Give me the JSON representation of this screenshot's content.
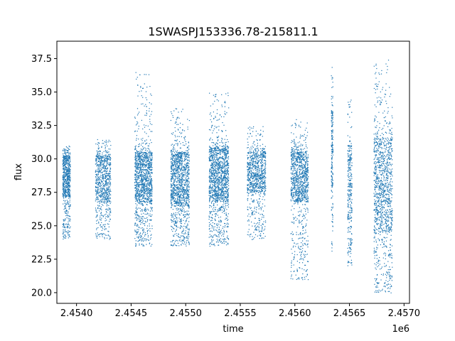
{
  "chart_data": {
    "type": "scatter",
    "title": "1SWASPJ153336.78-215811.1",
    "xlabel": "time",
    "ylabel": "flux",
    "x_offset_label": "1e6",
    "xlim": [
      2453820,
      2457050
    ],
    "ylim": [
      19.2,
      38.8
    ],
    "x_ticks": [
      2.454,
      2.4545,
      2.455,
      2.4555,
      2.456,
      2.4565,
      2.457
    ],
    "x_tick_labels": [
      "2.4540",
      "2.4545",
      "2.4550",
      "2.4555",
      "2.4560",
      "2.4565",
      "2.4570"
    ],
    "y_ticks": [
      20.0,
      22.5,
      25.0,
      27.5,
      30.0,
      32.5,
      35.0,
      37.5
    ],
    "y_tick_labels": [
      "20.0",
      "22.5",
      "25.0",
      "27.5",
      "30.0",
      "32.5",
      "35.0",
      "37.5"
    ],
    "grid": false,
    "marker_color": "#1f77b4",
    "seasons": [
      {
        "x_start": 2453870,
        "x_end": 2453940,
        "core_low": 27.2,
        "core_high": 30.2,
        "low_min": 24.0,
        "high_max": 31.0,
        "n": 700
      },
      {
        "x_start": 2454170,
        "x_end": 2454310,
        "core_low": 26.8,
        "core_high": 30.2,
        "low_min": 24.0,
        "high_max": 31.5,
        "n": 800
      },
      {
        "x_start": 2454530,
        "x_end": 2454690,
        "core_low": 26.8,
        "core_high": 30.5,
        "low_min": 23.5,
        "high_max": 36.5,
        "n": 1300
      },
      {
        "x_start": 2454860,
        "x_end": 2455030,
        "core_low": 26.5,
        "core_high": 30.5,
        "low_min": 23.5,
        "high_max": 34.0,
        "n": 1300
      },
      {
        "x_start": 2455210,
        "x_end": 2455390,
        "core_low": 26.8,
        "core_high": 30.8,
        "low_min": 23.5,
        "high_max": 35.0,
        "n": 1400
      },
      {
        "x_start": 2455560,
        "x_end": 2455730,
        "core_low": 27.5,
        "core_high": 30.5,
        "low_min": 24.0,
        "high_max": 32.5,
        "n": 900
      },
      {
        "x_start": 2455960,
        "x_end": 2456120,
        "core_low": 26.8,
        "core_high": 30.5,
        "low_min": 21.0,
        "high_max": 33.0,
        "n": 1100
      },
      {
        "x_start": 2456330,
        "x_end": 2456345,
        "core_low": 28.0,
        "core_high": 33.5,
        "low_min": 23.0,
        "high_max": 37.5,
        "n": 200
      },
      {
        "x_start": 2456480,
        "x_end": 2456520,
        "core_low": 25.5,
        "core_high": 31.0,
        "low_min": 22.0,
        "high_max": 34.5,
        "n": 300
      },
      {
        "x_start": 2456720,
        "x_end": 2456890,
        "core_low": 24.5,
        "core_high": 31.5,
        "low_min": 20.0,
        "high_max": 37.5,
        "n": 1200
      }
    ]
  }
}
